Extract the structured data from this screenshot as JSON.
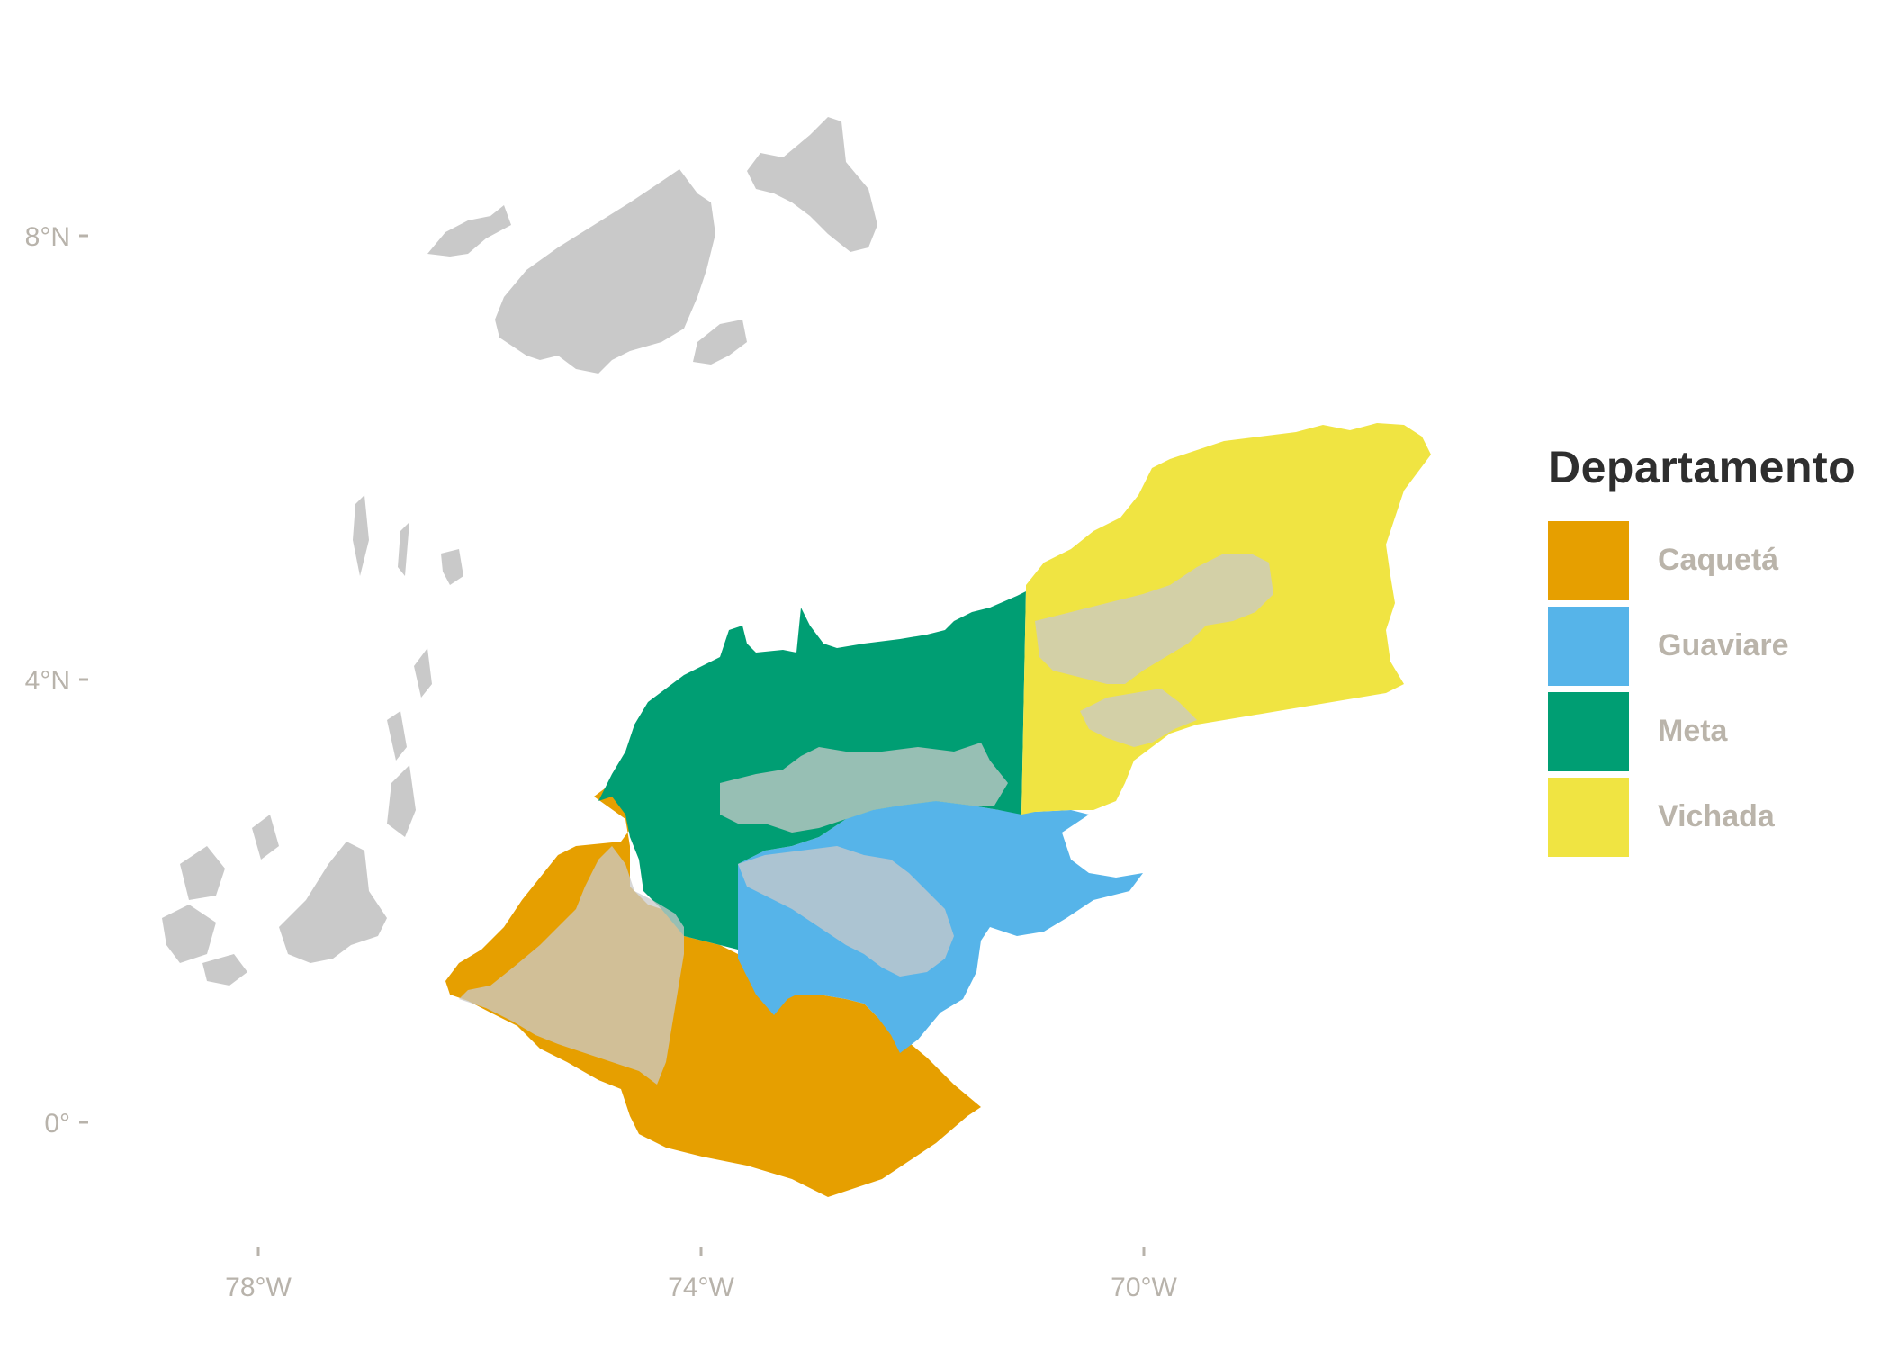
{
  "map": {
    "y_ticks": [
      {
        "label": "8°N",
        "lat": 8
      },
      {
        "label": "4°N",
        "lat": 4
      },
      {
        "label": "0°",
        "lat": 0
      }
    ],
    "x_ticks": [
      {
        "label": "78°W",
        "lon": -78
      },
      {
        "label": "74°W",
        "lon": -74
      },
      {
        "label": "70°W",
        "lon": -70
      }
    ],
    "background_region_color": "#c9c9c9",
    "overlay_color": "#c9c9c9"
  },
  "legend": {
    "title": "Departamento",
    "items": [
      {
        "label": "Caquetá",
        "color": "#e69f00"
      },
      {
        "label": "Guaviare",
        "color": "#56b4e9"
      },
      {
        "label": "Meta",
        "color": "#009e73"
      },
      {
        "label": "Vichada",
        "color": "#f0e442"
      }
    ]
  }
}
